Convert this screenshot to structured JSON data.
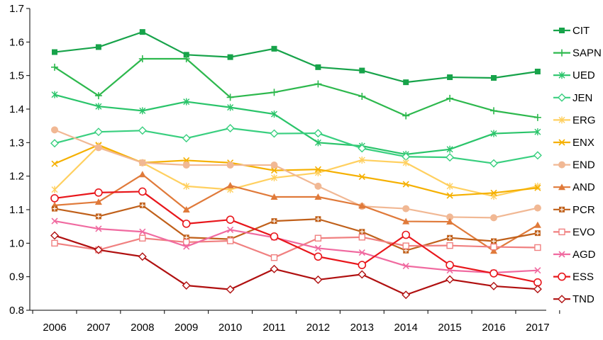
{
  "chart_data": {
    "type": "line",
    "title": "",
    "xlabel": "",
    "ylabel": "",
    "x": [
      "2006",
      "2007",
      "2008",
      "2009",
      "2010",
      "2011",
      "2012",
      "2013",
      "2014",
      "2015",
      "2016",
      "2017"
    ],
    "ylim": [
      0.8,
      1.7
    ],
    "yticks": [
      "0.8",
      "0.9",
      "1.0",
      "1.1",
      "1.2",
      "1.3",
      "1.4",
      "1.5",
      "1.6",
      "1.7"
    ],
    "grid": false,
    "legend_position": "right",
    "series": [
      {
        "name": "CIT",
        "color": "#17a34a",
        "marker": "square",
        "values": [
          1.57,
          1.585,
          1.63,
          1.562,
          1.555,
          1.58,
          1.525,
          1.515,
          1.48,
          1.495,
          1.493,
          1.512
        ]
      },
      {
        "name": "SAPN",
        "color": "#2db84d",
        "marker": "plus",
        "values": [
          1.525,
          1.44,
          1.55,
          1.55,
          1.435,
          1.45,
          1.475,
          1.438,
          1.38,
          1.432,
          1.395,
          1.375
        ]
      },
      {
        "name": "UED",
        "color": "#2ac46a",
        "marker": "asterisk",
        "values": [
          1.443,
          1.408,
          1.395,
          1.422,
          1.405,
          1.385,
          1.3,
          1.29,
          1.265,
          1.28,
          1.327,
          1.332
        ]
      },
      {
        "name": "JEN",
        "color": "#39cf7f",
        "marker": "diamond-open",
        "values": [
          1.298,
          1.332,
          1.336,
          1.313,
          1.343,
          1.327,
          1.328,
          1.283,
          1.258,
          1.256,
          1.238,
          1.262
        ]
      },
      {
        "name": "ERG",
        "color": "#ffd060",
        "marker": "asterisk",
        "values": [
          1.16,
          1.29,
          1.24,
          1.17,
          1.16,
          1.195,
          1.21,
          1.248,
          1.24,
          1.17,
          1.14,
          1.17
        ]
      },
      {
        "name": "ENX",
        "color": "#f5b000",
        "marker": "x",
        "values": [
          1.237,
          1.293,
          1.24,
          1.247,
          1.24,
          1.217,
          1.22,
          1.198,
          1.176,
          1.142,
          1.15,
          1.165
        ]
      },
      {
        "name": "END",
        "color": "#f1b894",
        "marker": "circle-filled",
        "values": [
          1.338,
          1.285,
          1.24,
          1.233,
          1.233,
          1.233,
          1.17,
          1.11,
          1.103,
          1.078,
          1.076,
          1.105
        ]
      },
      {
        "name": "AND",
        "color": "#e07a3a",
        "marker": "triangle",
        "values": [
          1.113,
          1.123,
          1.205,
          1.1,
          1.172,
          1.138,
          1.138,
          1.112,
          1.065,
          1.064,
          0.977,
          1.054
        ]
      },
      {
        "name": "PCR",
        "color": "#c0601a",
        "marker": "plus-box",
        "values": [
          1.103,
          1.08,
          1.113,
          1.017,
          1.012,
          1.066,
          1.072,
          1.034,
          0.978,
          1.016,
          1.006,
          1.03
        ]
      },
      {
        "name": "EVO",
        "color": "#f08080",
        "marker": "square-open",
        "values": [
          1.0,
          0.98,
          1.015,
          1.003,
          1.007,
          0.957,
          1.015,
          1.018,
          0.992,
          0.993,
          0.989,
          0.987
        ]
      },
      {
        "name": "AGD",
        "color": "#f06aa0",
        "marker": "x",
        "values": [
          1.066,
          1.043,
          1.034,
          0.99,
          1.04,
          1.017,
          0.985,
          0.972,
          0.932,
          0.919,
          0.912,
          0.919
        ]
      },
      {
        "name": "ESS",
        "color": "#e8161b",
        "marker": "circle-open",
        "values": [
          1.134,
          1.151,
          1.154,
          1.058,
          1.07,
          1.02,
          0.96,
          0.935,
          1.025,
          0.935,
          0.91,
          0.883
        ]
      },
      {
        "name": "TND",
        "color": "#b01010",
        "marker": "diamond-open",
        "values": [
          1.023,
          0.98,
          0.96,
          0.874,
          0.862,
          0.923,
          0.891,
          0.907,
          0.846,
          0.892,
          0.872,
          0.863
        ]
      }
    ]
  }
}
